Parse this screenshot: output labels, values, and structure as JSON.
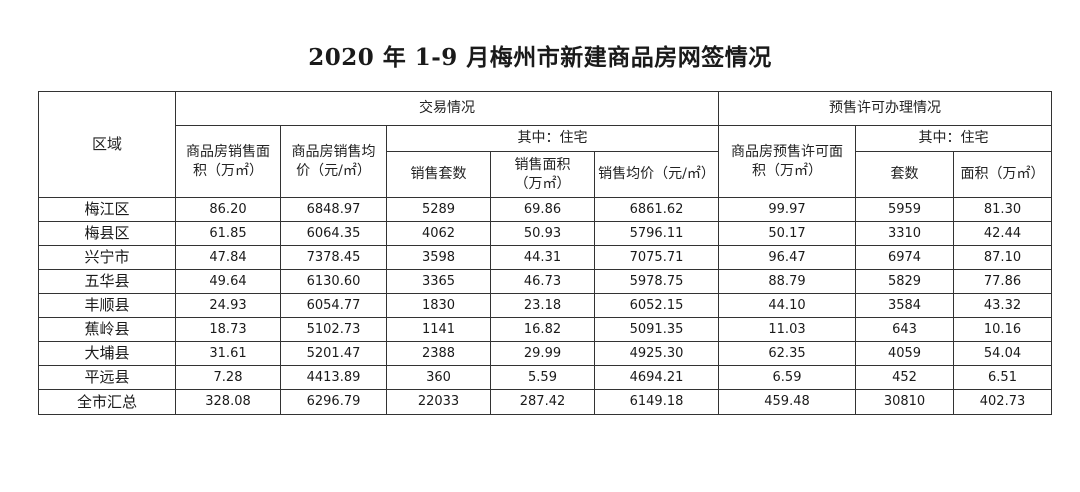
{
  "title": "2020 年 1-9 月梅州市新建商品房网签情况",
  "headers": {
    "region": "区域",
    "transaction": "交易情况",
    "presale": "预售许可办理情况",
    "t_area": "商品房销售面积（万㎡）",
    "t_price": "商品房销售均价（元/㎡）",
    "t_residential": "其中：住宅",
    "t_units": "销售套数",
    "t_res_area": "销售面积（万㎡）",
    "t_res_price": "销售均价（元/㎡）",
    "p_area": "商品房预售许可面积（万㎡）",
    "p_residential": "其中：住宅",
    "p_units": "套数",
    "p_res_area": "面积（万㎡）"
  },
  "rows": [
    {
      "region": "梅江区",
      "v": [
        "86.20",
        "6848.97",
        "5289",
        "69.86",
        "6861.62",
        "99.97",
        "5959",
        "81.30"
      ]
    },
    {
      "region": "梅县区",
      "v": [
        "61.85",
        "6064.35",
        "4062",
        "50.93",
        "5796.11",
        "50.17",
        "3310",
        "42.44"
      ]
    },
    {
      "region": "兴宁市",
      "v": [
        "47.84",
        "7378.45",
        "3598",
        "44.31",
        "7075.71",
        "96.47",
        "6974",
        "87.10"
      ]
    },
    {
      "region": "五华县",
      "v": [
        "49.64",
        "6130.60",
        "3365",
        "46.73",
        "5978.75",
        "88.79",
        "5829",
        "77.86"
      ]
    },
    {
      "region": "丰顺县",
      "v": [
        "24.93",
        "6054.77",
        "1830",
        "23.18",
        "6052.15",
        "44.10",
        "3584",
        "43.32"
      ]
    },
    {
      "region": "蕉岭县",
      "v": [
        "18.73",
        "5102.73",
        "1141",
        "16.82",
        "5091.35",
        "11.03",
        "643",
        "10.16"
      ]
    },
    {
      "region": "大埔县",
      "v": [
        "31.61",
        "5201.47",
        "2388",
        "29.99",
        "4925.30",
        "62.35",
        "4059",
        "54.04"
      ]
    },
    {
      "region": "平远县",
      "v": [
        "7.28",
        "4413.89",
        "360",
        "5.59",
        "4694.21",
        "6.59",
        "452",
        "6.51"
      ]
    },
    {
      "region": "全市汇总",
      "v": [
        "328.08",
        "6296.79",
        "22033",
        "287.42",
        "6149.18",
        "459.48",
        "30810",
        "402.73"
      ]
    }
  ]
}
